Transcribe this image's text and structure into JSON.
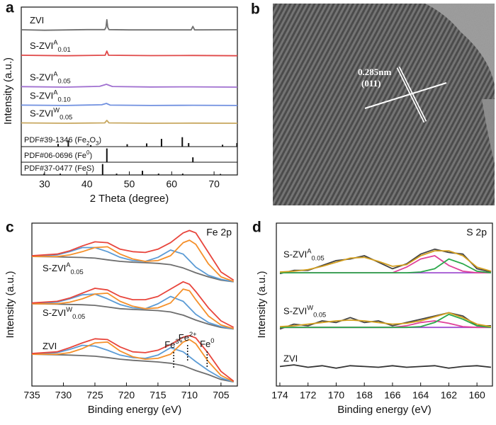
{
  "chart_data": [
    {
      "panel": "a",
      "type": "line",
      "xlabel": "2 Theta (degree)",
      "ylabel": "Intensity (a.u.)",
      "xlim": [
        24.5,
        75.5
      ],
      "ylim": [
        0,
        100
      ],
      "xticks": [
        30,
        40,
        50,
        60,
        70
      ],
      "groups": [
        {
          "label": [
            {
              "text": "ZVI"
            }
          ],
          "series": [
            {
              "color": "#707070",
              "x": [
                24.5,
                30,
                40,
                44.2,
                44.5,
                44.7,
                44.9,
                45.2,
                50,
                64.6,
                65,
                65.4,
                75.5
              ],
              "values": [
                86.5,
                86.2,
                86.6,
                86.6,
                88,
                92.5,
                88,
                86.6,
                86.4,
                86.4,
                88.5,
                86.4,
                86.5
              ]
            }
          ]
        },
        {
          "label": [
            {
              "text": "S-ZVI"
            },
            {
              "sup": "A"
            },
            {
              "sub": "0.01"
            }
          ],
          "series": [
            {
              "color": "#e04848",
              "x": [
                24.5,
                35,
                44.3,
                44.7,
                45.1,
                55,
                65,
                75.5
              ],
              "values": [
                71.3,
                71.0,
                71.3,
                73.8,
                71.3,
                71.1,
                71.2,
                71.0
              ]
            }
          ]
        },
        {
          "label": [
            {
              "text": "S-ZVI"
            },
            {
              "sup": "A"
            },
            {
              "sub": "0.05"
            }
          ],
          "series": [
            {
              "color": "#a070d0",
              "x": [
                24.5,
                35,
                43,
                44.6,
                46,
                55,
                65,
                75.5
              ],
              "values": [
                52.6,
                52.3,
                52.8,
                54,
                52.7,
                52.4,
                52.5,
                52.3
              ]
            }
          ]
        },
        {
          "label": [
            {
              "text": "S-ZVI"
            },
            {
              "sup": "A"
            },
            {
              "sub": "0.10"
            }
          ],
          "series": [
            {
              "color": "#7090e0",
              "x": [
                24.5,
                35,
                43.5,
                44.6,
                45.5,
                55,
                65,
                75.5
              ],
              "values": [
                41.6,
                41.4,
                41.8,
                42.6,
                41.6,
                41.4,
                41.5,
                41.4
              ]
            }
          ]
        },
        {
          "label": [
            {
              "text": "S-ZVI"
            },
            {
              "sup": "W"
            },
            {
              "sub": "0.05"
            }
          ],
          "series": [
            {
              "color": "#c8a860",
              "x": [
                24.5,
                35,
                44.2,
                44.7,
                45.2,
                55,
                65,
                75.5
              ],
              "values": [
                31,
                30.8,
                31,
                32.5,
                31,
                30.8,
                30.9,
                30.8
              ]
            }
          ]
        }
      ],
      "references": [
        {
          "label": [
            {
              "text": "PDF#39-1346 (Fe"
            },
            {
              "sub": "2"
            },
            {
              "text": "O"
            },
            {
              "sub": "3"
            },
            {
              "text": ")"
            }
          ],
          "base": 16.9,
          "x": [
            33.2,
            35.6,
            40.9,
            49.5,
            54.1,
            57.6,
            62.5,
            64.0,
            72.0,
            75.4
          ],
          "values": [
            18.5,
            20.5,
            17.8,
            18.3,
            18.8,
            21.5,
            22.5,
            19,
            18,
            19
          ]
        },
        {
          "label": [
            {
              "text": "PDF#06-0696 (Fe"
            },
            {
              "sup": "0"
            },
            {
              "text": ")"
            }
          ],
          "base": 7.6,
          "x": [
            44.7,
            65.0
          ],
          "values": [
            15.8,
            10.5
          ]
        },
        {
          "label": [
            {
              "text": "PDF#37-0477 (FeS)"
            }
          ],
          "base": 0,
          "x": [
            29.9,
            33.7,
            43.7,
            47.0,
            53.1,
            56.9,
            62.6,
            71.5
          ],
          "values": [
            0.8,
            0.8,
            6.5,
            0.8,
            2.5,
            0.8,
            0.8,
            0.6
          ]
        }
      ]
    },
    {
      "panel": "b",
      "type": "image",
      "annotations": [
        "0.285nm",
        "(011)"
      ]
    },
    {
      "panel": "c",
      "type": "line",
      "title": "Fe 2p",
      "xlabel": "Binding energy (eV)",
      "ylabel": "Intensity (a.u.)",
      "xlim": [
        735,
        702.4
      ],
      "ylim": [
        0,
        100
      ],
      "xticks": [
        735,
        730,
        725,
        720,
        715,
        710,
        705
      ],
      "x": [
        735,
        731,
        729,
        727,
        725,
        723,
        721,
        719,
        717,
        715,
        713,
        711,
        710,
        709,
        707,
        705,
        703
      ],
      "groups": [
        {
          "label": [
            {
              "text": "S-ZVI"
            },
            {
              "sup": "A"
            },
            {
              "sub": "0.05"
            }
          ],
          "series": [
            {
              "color": "#6e6e6e",
              "values": [
                79.5,
                79.3,
                79.1,
                78.9,
                78.5,
                77.5,
                76.5,
                76,
                75.7,
                75.3,
                74.5,
                72.5,
                71,
                69.5,
                67,
                65,
                64
              ]
            },
            {
              "color": "#5b9bd5",
              "values": [
                79.5,
                80.5,
                82.5,
                85,
                85,
                82.5,
                79,
                77,
                76.5,
                79,
                83.5,
                81,
                77,
                73,
                68,
                65.5,
                64
              ]
            },
            {
              "color": "#f5902a",
              "values": [
                79.5,
                79.5,
                80.5,
                82.5,
                85,
                85.5,
                81,
                78,
                76.5,
                77,
                80,
                88,
                89.5,
                87,
                75,
                67,
                64.2
              ]
            },
            {
              "color": "#e8453c",
              "values": [
                80,
                81,
                83,
                86,
                88.5,
                88,
                84,
                82.5,
                82,
                84,
                88,
                94,
                95.5,
                94,
                82,
                70,
                65
              ]
            }
          ]
        },
        {
          "label": [
            {
              "text": "S-ZVI"
            },
            {
              "sup": "W"
            },
            {
              "sub": "0.05"
            }
          ],
          "series": [
            {
              "color": "#6e6e6e",
              "values": [
                50.5,
                50.3,
                50.1,
                49.9,
                49.5,
                48.5,
                47.5,
                47,
                46.7,
                46.3,
                45.5,
                43.5,
                42,
                40.5,
                38,
                36,
                35
              ]
            },
            {
              "color": "#5b9bd5",
              "values": [
                50.5,
                51.5,
                53.5,
                56,
                56.5,
                53.5,
                50,
                48,
                47.5,
                50.5,
                55,
                52,
                48,
                44,
                39,
                36.5,
                35
              ]
            },
            {
              "color": "#f5902a",
              "values": [
                50.5,
                50.5,
                51.5,
                53.5,
                56.5,
                57,
                52,
                49,
                47.5,
                48,
                51,
                59.5,
                58.5,
                53,
                43,
                37.5,
                35.2
              ]
            },
            {
              "color": "#e8453c",
              "values": [
                51,
                52,
                54,
                57,
                60,
                59,
                55,
                53,
                53,
                55,
                59.5,
                64,
                62.5,
                58,
                48,
                40,
                36
              ]
            }
          ]
        },
        {
          "label": [
            {
              "text": "ZVI"
            }
          ],
          "series": [
            {
              "color": "#6e6e6e",
              "values": [
                19.5,
                19.2,
                19,
                18.7,
                18.3,
                17.5,
                16.5,
                15.8,
                15.3,
                14.8,
                14,
                12.5,
                11,
                9.5,
                7,
                4,
                2.5
              ]
            },
            {
              "color": "#5b9bd5",
              "values": [
                19.5,
                20.5,
                22.5,
                25,
                24.5,
                22,
                19,
                17.5,
                17,
                19,
                23.5,
                21,
                18,
                15,
                9.5,
                5,
                2.5
              ]
            },
            {
              "color": "#f5902a",
              "values": [
                19.5,
                19.5,
                20.5,
                23,
                26.5,
                27,
                21.5,
                18,
                16.5,
                17,
                19.5,
                27,
                28.5,
                26,
                15,
                6.5,
                2.7
              ]
            },
            {
              "color": "#e8453c",
              "values": [
                20,
                21,
                23.5,
                26.5,
                29,
                28.5,
                24,
                21,
                20.5,
                22,
                25.5,
                30,
                31,
                29.5,
                20,
                9,
                3
              ]
            }
          ]
        }
      ],
      "annotations": [
        {
          "label": [
            {
              "text": "Fe"
            },
            {
              "sup": "3+"
            }
          ],
          "x": 712.5
        },
        {
          "label": [
            {
              "text": "Fe"
            },
            {
              "sup": "2+"
            }
          ],
          "x": 710.3
        },
        {
          "label": [
            {
              "text": "Fe"
            },
            {
              "sup": "0"
            }
          ],
          "x": 707.2
        }
      ]
    },
    {
      "panel": "d",
      "type": "line",
      "title": "S 2p",
      "xlabel": "Binding energy (eV)",
      "ylabel": "Intensity (a.u.)",
      "xlim": [
        174.25,
        158.9
      ],
      "ylim": [
        0,
        100
      ],
      "xticks": [
        174,
        172,
        170,
        168,
        166,
        164,
        162,
        160
      ],
      "x": [
        174,
        173,
        172,
        171,
        170,
        169,
        168,
        167,
        166,
        165,
        164,
        163,
        162,
        161,
        160,
        159
      ],
      "groups": [
        {
          "label": [
            {
              "text": "S-ZVI"
            },
            {
              "sup": "A"
            },
            {
              "sub": "0.05"
            }
          ],
          "series": [
            {
              "color": "#444444",
              "values": [
                69,
                71,
                71,
                74,
                77,
                78,
                80,
                76,
                72,
                75,
                81,
                84,
                82,
                81,
                72,
                70
              ]
            },
            {
              "color": "#a050d0",
              "values": [
                69.5,
                69.5,
                69.5,
                69.5,
                69.5,
                69.5,
                69.5,
                69.5,
                69.5,
                69.5,
                69.5,
                69.5,
                69.5,
                69.5,
                69.5,
                69.5
              ]
            },
            {
              "color": "#e0409a",
              "values": [
                69.5,
                69.5,
                69.5,
                69.5,
                69.5,
                69.5,
                69.5,
                69.5,
                69.5,
                73,
                78,
                80,
                74,
                70.5,
                69.5,
                69.5
              ]
            },
            {
              "color": "#2aa84a",
              "values": [
                69.5,
                69.5,
                69.5,
                69.5,
                69.5,
                69.5,
                69.5,
                69.5,
                69.5,
                69.5,
                70,
                72,
                78,
                75,
                70.5,
                69.5
              ]
            },
            {
              "color": "#d4a020",
              "values": [
                70,
                70.5,
                71.5,
                73.5,
                76,
                78.5,
                79,
                76.5,
                73.5,
                74.5,
                80,
                83,
                83,
                80,
                73,
                70.5
              ]
            }
          ]
        },
        {
          "label": [
            {
              "text": "S-ZVI"
            },
            {
              "sup": "W"
            },
            {
              "sub": "0.05"
            }
          ],
          "series": [
            {
              "color": "#444444",
              "values": [
                35,
                38,
                37,
                40,
                39,
                42,
                39,
                40,
                37,
                39,
                41,
                43,
                45,
                43,
                37,
                37
              ]
            },
            {
              "color": "#a050d0",
              "values": [
                36,
                36,
                36,
                36,
                36,
                36,
                36,
                36,
                36,
                36,
                36,
                36,
                36,
                36,
                36,
                36
              ]
            },
            {
              "color": "#e0409a",
              "values": [
                36,
                36,
                36,
                36,
                36,
                36,
                36,
                36,
                36,
                37,
                39,
                40,
                38.5,
                36.5,
                36,
                36
              ]
            },
            {
              "color": "#2aa84a",
              "values": [
                36,
                36,
                36,
                36,
                36,
                36,
                36,
                36,
                36,
                36,
                36.5,
                39,
                44,
                41,
                37,
                36
              ]
            },
            {
              "color": "#d4a020",
              "values": [
                36.5,
                37,
                38,
                39,
                40,
                40.5,
                40,
                39,
                38,
                38.5,
                40,
                42.5,
                45,
                42,
                38,
                36.5
              ]
            }
          ]
        },
        {
          "label": [
            {
              "text": "ZVI"
            }
          ],
          "series": [
            {
              "color": "#333333",
              "values": [
                12,
                13,
                11.5,
                12.5,
                11,
                12.5,
                12,
                11.5,
                12.5,
                11.5,
                12,
                12.5,
                11,
                12,
                12.5,
                11.5
              ]
            }
          ]
        }
      ]
    }
  ]
}
